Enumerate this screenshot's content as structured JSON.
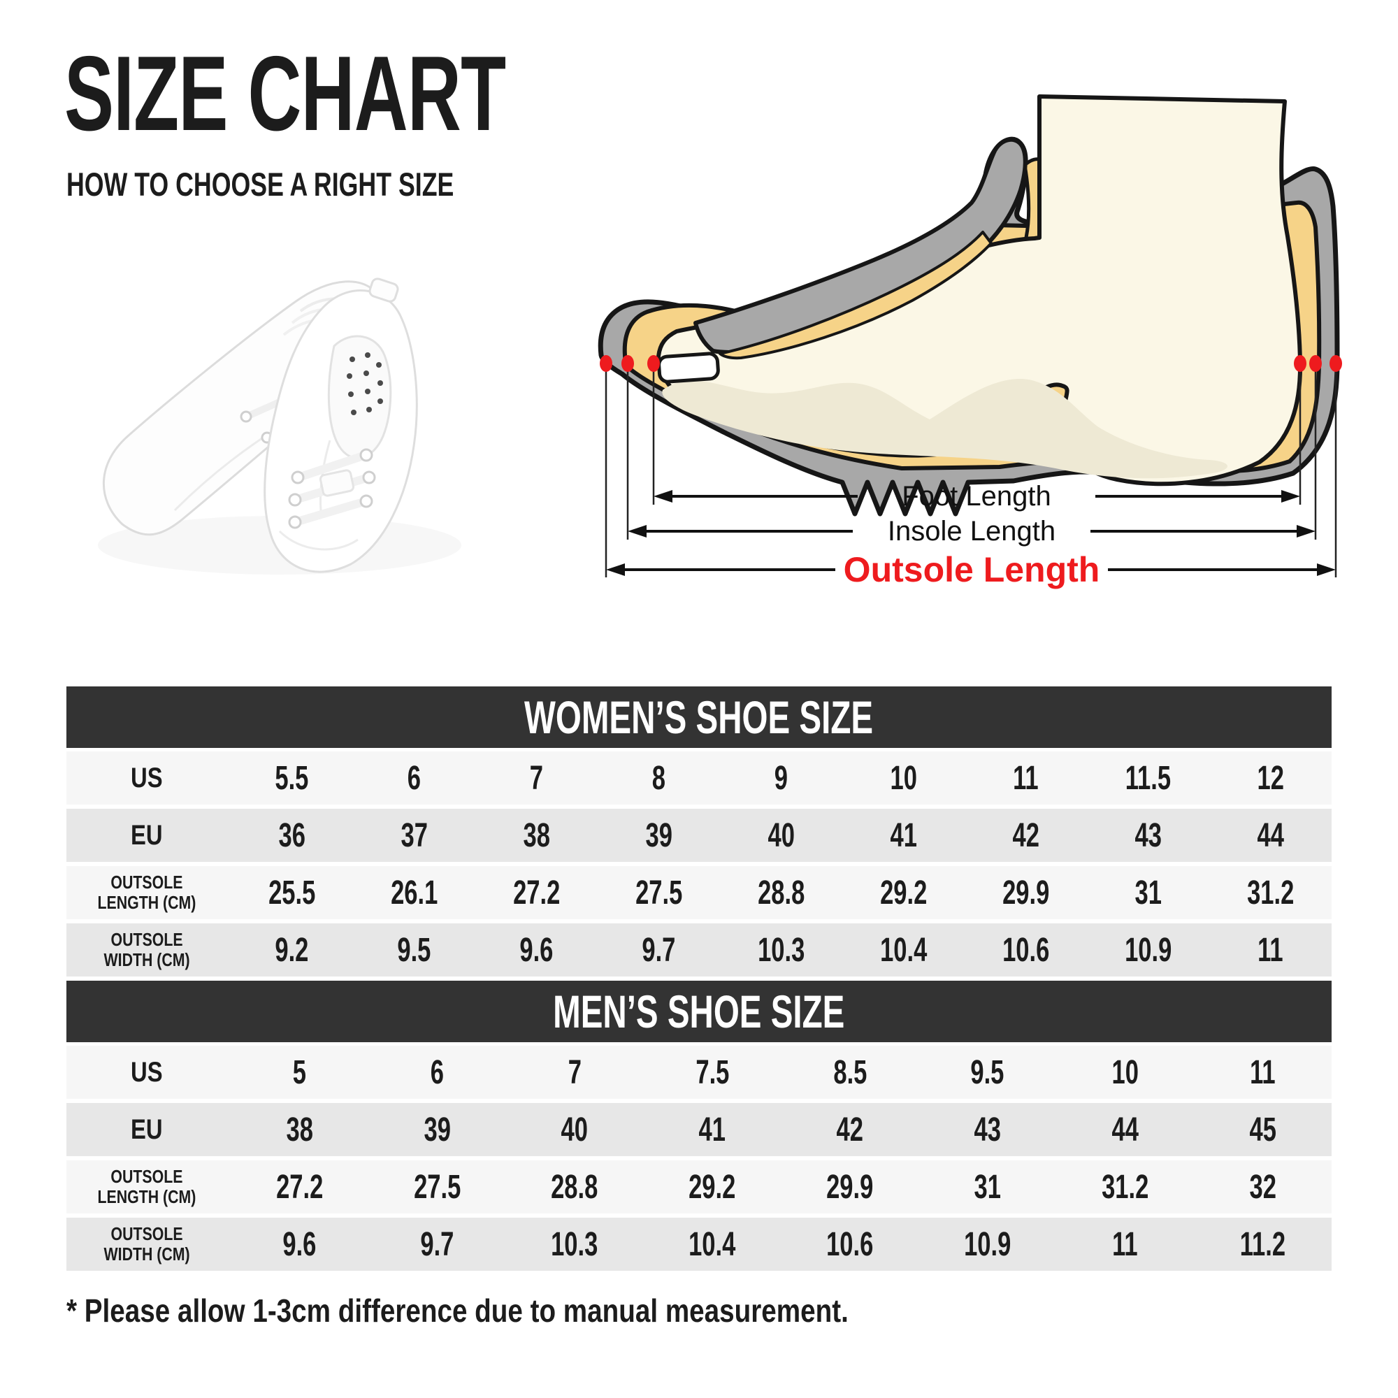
{
  "page": {
    "background": "#ffffff"
  },
  "header": {
    "title": "SIZE CHART",
    "subtitle": "HOW TO CHOOSE A RIGHT SIZE"
  },
  "images": {
    "shoes_photo": "white-lace-up-sneakers-pair"
  },
  "diagram": {
    "foot_label": "Foot Length",
    "insole_label": "Insole Length",
    "outsole_label": "Outsole Length",
    "colors": {
      "sole_gray": "#a8a8a8",
      "lining_yellow": "#f6d388",
      "skin_cream": "#fbf7e6",
      "skin_shade": "#eee9d4",
      "outline": "#161616",
      "marker_red": "#ee1b1e",
      "outsole_label_red": "#ee1b1e"
    }
  },
  "colors": {
    "table_header_bg": "#333333",
    "table_header_text": "#ffffff",
    "row_light": "#f6f6f6",
    "row_dark": "#e7e7e7",
    "cell_text": "#1c1c1c"
  },
  "tables": [
    {
      "title": "WOMEN’S SHOE SIZE",
      "rows": [
        {
          "label": "US",
          "values": [
            "5.5",
            "6",
            "7",
            "8",
            "9",
            "10",
            "11",
            "11.5",
            "12"
          ]
        },
        {
          "label": "EU",
          "values": [
            "36",
            "37",
            "38",
            "39",
            "40",
            "41",
            "42",
            "43",
            "44"
          ]
        },
        {
          "label": "OUTSOLE\nLENGTH (CM)",
          "values": [
            "25.5",
            "26.1",
            "27.2",
            "27.5",
            "28.8",
            "29.2",
            "29.9",
            "31",
            "31.2"
          ]
        },
        {
          "label": "OUTSOLE\nWIDTH (CM)",
          "values": [
            "9.2",
            "9.5",
            "9.6",
            "9.7",
            "10.3",
            "10.4",
            "10.6",
            "10.9",
            "11"
          ]
        }
      ]
    },
    {
      "title": "MEN’S SHOE SIZE",
      "rows": [
        {
          "label": "US",
          "values": [
            "5",
            "6",
            "7",
            "7.5",
            "8.5",
            "9.5",
            "10",
            "11"
          ]
        },
        {
          "label": "EU",
          "values": [
            "38",
            "39",
            "40",
            "41",
            "42",
            "43",
            "44",
            "45"
          ]
        },
        {
          "label": "OUTSOLE\nLENGTH (CM)",
          "values": [
            "27.2",
            "27.5",
            "28.8",
            "29.2",
            "29.9",
            "31",
            "31.2",
            "32"
          ]
        },
        {
          "label": "OUTSOLE\nWIDTH (CM)",
          "values": [
            "9.6",
            "9.7",
            "10.3",
            "10.4",
            "10.6",
            "10.9",
            "11",
            "11.2"
          ]
        }
      ]
    }
  ],
  "footnote": "* Please allow 1-3cm difference due to manual measurement."
}
